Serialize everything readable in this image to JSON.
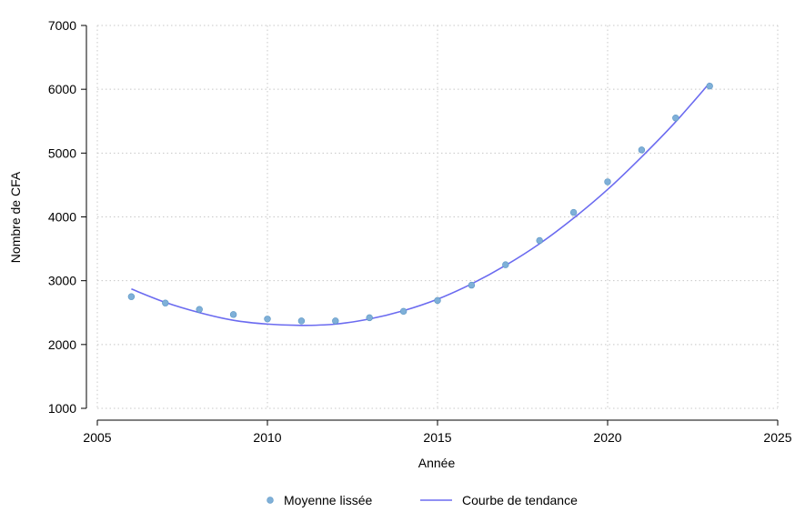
{
  "chart_data": {
    "type": "scatter",
    "title": "",
    "xlabel": "Année",
    "ylabel": "Nombre de CFA",
    "xlim": [
      2005,
      2025
    ],
    "ylim": [
      1000,
      7000
    ],
    "xticks": [
      2005,
      2010,
      2015,
      2020,
      2025
    ],
    "yticks": [
      1000,
      2000,
      3000,
      4000,
      5000,
      6000,
      7000
    ],
    "grid": true,
    "legend_position": "bottom",
    "series": [
      {
        "name": "Moyenne lissée",
        "type": "scatter",
        "color": "#7fb0d8",
        "x": [
          2006,
          2007,
          2008,
          2009,
          2010,
          2011,
          2012,
          2013,
          2014,
          2015,
          2016,
          2017,
          2018,
          2019,
          2020,
          2021,
          2022,
          2023
        ],
        "y": [
          2750,
          2650,
          2550,
          2470,
          2400,
          2370,
          2370,
          2420,
          2520,
          2690,
          2930,
          3250,
          3630,
          4070,
          4550,
          5050,
          5550,
          6050
        ]
      },
      {
        "name": "Courbe de tendance",
        "type": "line",
        "color": "#6b6bf0",
        "x": [
          2006,
          2007,
          2008,
          2009,
          2010,
          2011,
          2012,
          2013,
          2014,
          2015,
          2016,
          2017,
          2018,
          2019,
          2020,
          2021,
          2022,
          2023
        ],
        "y": [
          2870,
          2660,
          2500,
          2380,
          2320,
          2300,
          2320,
          2400,
          2530,
          2710,
          2950,
          3240,
          3580,
          3980,
          4430,
          4940,
          5490,
          6100
        ]
      }
    ]
  }
}
